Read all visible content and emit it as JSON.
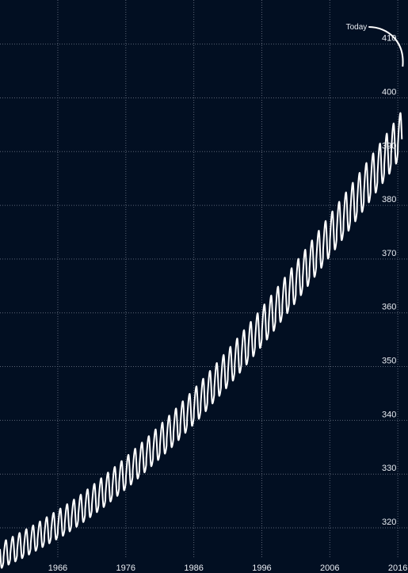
{
  "colors": {
    "background": "#020f22",
    "grid": "#5a6475",
    "line": "#ffffff",
    "text": "#e8ecf2"
  },
  "chart_data": {
    "type": "line",
    "title": "",
    "xlabel": "",
    "ylabel": "",
    "xlim": [
      1957.5,
      2017.5
    ],
    "ylim": [
      311.6,
      418.2
    ],
    "x_ticks": [
      1966,
      1976,
      1986,
      1996,
      2006,
      2016
    ],
    "x_tick_labels": [
      "1966",
      "1976",
      "1986",
      "1996",
      "2006",
      "2016"
    ],
    "y_ticks": [
      320,
      330,
      340,
      350,
      360,
      370,
      380,
      390,
      400,
      410
    ],
    "y_tick_labels": [
      "320",
      "330",
      "340",
      "350",
      "360",
      "370",
      "380",
      "390",
      "400",
      "410"
    ],
    "y_axis_side": "right",
    "grid": true,
    "grid_style": "dotted",
    "series": [
      {
        "x": [
          1957.5,
          1959.0,
          1961.0,
          1963.0,
          1965.0,
          1967.0,
          1969.0,
          1971.0,
          1973.0,
          1975.0,
          1977.0,
          1979.0,
          1981.0,
          1983.0,
          1985.0,
          1987.0,
          1989.0,
          1991.0,
          1993.0,
          1995.0,
          1997.0,
          1999.0,
          2001.0,
          2003.0,
          2005.0,
          2007.0,
          2009.0,
          2011.0,
          2013.0,
          2015.0,
          2016.6
        ],
        "trend": [
          314.8,
          315.7,
          317.0,
          318.4,
          319.9,
          321.4,
          323.1,
          325.0,
          327.0,
          329.1,
          331.3,
          333.6,
          336.0,
          338.5,
          341.2,
          343.9,
          346.8,
          349.7,
          352.7,
          355.8,
          359.0,
          362.3,
          365.7,
          369.1,
          372.6,
          376.1,
          379.6,
          383.2,
          386.8,
          390.4,
          393.5
        ],
        "seasonal_amplitude": [
          2.4,
          2.4,
          2.5,
          2.5,
          2.6,
          2.7,
          2.7,
          2.8,
          2.9,
          2.9,
          3.0,
          3.0,
          3.1,
          3.2,
          3.2,
          3.3,
          3.3,
          3.4,
          3.5,
          3.5,
          3.6,
          3.6,
          3.7,
          3.7,
          3.8,
          3.9,
          3.9,
          4.0,
          4.0,
          4.1,
          4.1
        ],
        "cycles_per_year": 1
      }
    ],
    "annotations": [
      {
        "text": "Today",
        "target_x": 2016.6
      }
    ]
  }
}
